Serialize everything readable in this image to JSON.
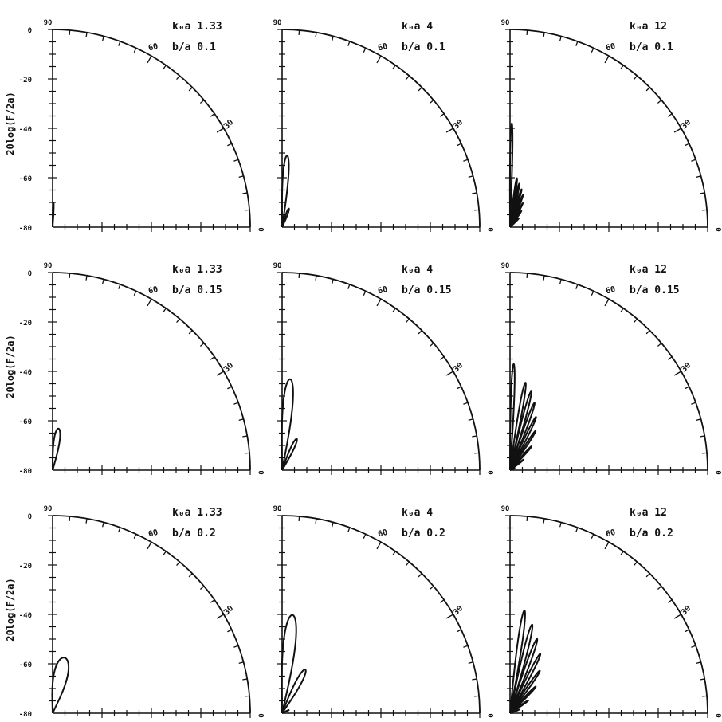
{
  "figure": {
    "ylabel": "20log(F/2a)",
    "ytick_labels": [
      "0",
      "-20",
      "-40",
      "-60",
      "-80"
    ],
    "angle_labels": {
      "top": "90",
      "mid1": "60",
      "mid2": "30",
      "zero": "0"
    }
  },
  "chart_data": [
    {
      "type": "polar-line",
      "k_label": "k₀a 1.33",
      "ba_label": "b/a 0.1",
      "rlim": [
        -80,
        0
      ],
      "series": [
        {
          "lobes": [
            {
              "center_deg": 88,
              "half_width_deg": 2.0,
              "peak_db": -70
            }
          ]
        }
      ]
    },
    {
      "type": "polar-line",
      "k_label": "k₀a 4",
      "ba_label": "b/a 0.1",
      "rlim": [
        -80,
        0
      ],
      "series": [
        {
          "lobes": [
            {
              "center_deg": 86,
              "half_width_deg": 4.5,
              "peak_db": -51
            },
            {
              "center_deg": 70,
              "half_width_deg": 5.0,
              "peak_db": -72
            }
          ]
        }
      ]
    },
    {
      "type": "polar-line",
      "k_label": "k₀a 12",
      "ba_label": "b/a 0.1",
      "rlim": [
        -80,
        0
      ],
      "series": [
        {
          "lobes": [
            {
              "center_deg": 89,
              "half_width_deg": 1.2,
              "peak_db": -38
            },
            {
              "center_deg": 82,
              "half_width_deg": 1.8,
              "peak_db": -60
            },
            {
              "center_deg": 78,
              "half_width_deg": 1.8,
              "peak_db": -62
            },
            {
              "center_deg": 73,
              "half_width_deg": 1.8,
              "peak_db": -64
            },
            {
              "center_deg": 68,
              "half_width_deg": 2.0,
              "peak_db": -66
            },
            {
              "center_deg": 62,
              "half_width_deg": 2.0,
              "peak_db": -69
            },
            {
              "center_deg": 55,
              "half_width_deg": 2.0,
              "peak_db": -72
            },
            {
              "center_deg": 45,
              "half_width_deg": 2.0,
              "peak_db": -75
            }
          ]
        }
      ]
    },
    {
      "type": "polar-line",
      "k_label": "k₀a 1.33",
      "ba_label": "b/a 0.15",
      "rlim": [
        -80,
        0
      ],
      "series": [
        {
          "lobes": [
            {
              "center_deg": 82,
              "half_width_deg": 8.0,
              "peak_db": -63
            }
          ]
        }
      ]
    },
    {
      "type": "polar-line",
      "k_label": "k₀a 4",
      "ba_label": "b/a 0.15",
      "rlim": [
        -80,
        0
      ],
      "series": [
        {
          "lobes": [
            {
              "center_deg": 85,
              "half_width_deg": 6.0,
              "peak_db": -43
            },
            {
              "center_deg": 65,
              "half_width_deg": 5.5,
              "peak_db": -66
            }
          ]
        }
      ]
    },
    {
      "type": "polar-line",
      "k_label": "k₀a 12",
      "ba_label": "b/a 0.15",
      "rlim": [
        -80,
        0
      ],
      "series": [
        {
          "lobes": [
            {
              "center_deg": 88,
              "half_width_deg": 1.8,
              "peak_db": -37
            },
            {
              "center_deg": 80,
              "half_width_deg": 2.2,
              "peak_db": -44
            },
            {
              "center_deg": 75,
              "half_width_deg": 2.2,
              "peak_db": -47
            },
            {
              "center_deg": 70,
              "half_width_deg": 2.2,
              "peak_db": -51
            },
            {
              "center_deg": 64,
              "half_width_deg": 2.2,
              "peak_db": -56
            },
            {
              "center_deg": 57,
              "half_width_deg": 2.2,
              "peak_db": -61
            },
            {
              "center_deg": 48,
              "half_width_deg": 2.2,
              "peak_db": -67
            },
            {
              "center_deg": 38,
              "half_width_deg": 2.2,
              "peak_db": -73
            },
            {
              "center_deg": 20,
              "half_width_deg": 3.0,
              "peak_db": -78
            }
          ]
        }
      ]
    },
    {
      "type": "polar-line",
      "k_label": "k₀a 1.33",
      "ba_label": "b/a 0.2",
      "rlim": [
        -80,
        0
      ],
      "series": [
        {
          "lobes": [
            {
              "center_deg": 78,
              "half_width_deg": 14.0,
              "peak_db": -57
            }
          ]
        }
      ]
    },
    {
      "type": "polar-line",
      "k_label": "k₀a 4",
      "ba_label": "b/a 0.2",
      "rlim": [
        -80,
        0
      ],
      "series": [
        {
          "lobes": [
            {
              "center_deg": 84,
              "half_width_deg": 7.0,
              "peak_db": -40
            },
            {
              "center_deg": 62,
              "half_width_deg": 6.5,
              "peak_db": -60
            },
            {
              "center_deg": 25,
              "half_width_deg": 3.0,
              "peak_db": -77
            }
          ]
        }
      ]
    },
    {
      "type": "polar-line",
      "k_label": "k₀a 12",
      "ba_label": "b/a 0.2",
      "rlim": [
        -80,
        0
      ],
      "series": [
        {
          "lobes": [
            {
              "center_deg": 82,
              "half_width_deg": 2.5,
              "peak_db": -38
            },
            {
              "center_deg": 76,
              "half_width_deg": 2.5,
              "peak_db": -43
            },
            {
              "center_deg": 70,
              "half_width_deg": 2.5,
              "peak_db": -48
            },
            {
              "center_deg": 63,
              "half_width_deg": 2.5,
              "peak_db": -53
            },
            {
              "center_deg": 55,
              "half_width_deg": 2.5,
              "peak_db": -59
            },
            {
              "center_deg": 46,
              "half_width_deg": 2.5,
              "peak_db": -65
            },
            {
              "center_deg": 35,
              "half_width_deg": 2.5,
              "peak_db": -71
            },
            {
              "center_deg": 22,
              "half_width_deg": 3.0,
              "peak_db": -76
            }
          ]
        }
      ]
    }
  ]
}
